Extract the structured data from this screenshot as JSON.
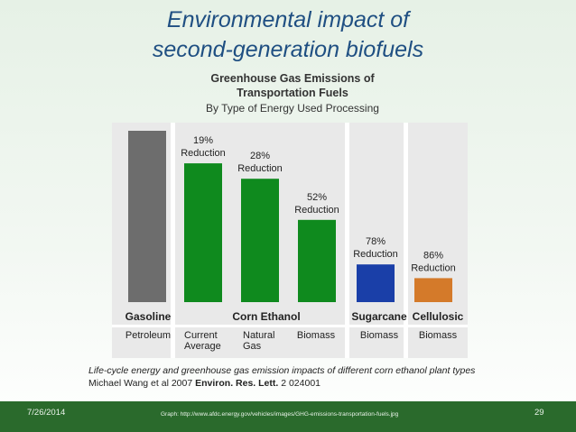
{
  "slide": {
    "title_line1": "Environmental impact of",
    "title_line2": "second-generation biofuels"
  },
  "chart_data": {
    "type": "bar",
    "title": "Greenhouse Gas Emissions of",
    "title_line2": "Transportation Fuels",
    "subtitle": "By Type of Energy Used Processing",
    "ylim": [
      0,
      100
    ],
    "grid": false,
    "bars": [
      {
        "fuel": "Gasoline",
        "energy": "Petroleum",
        "value": 100,
        "label_pct": "",
        "label_text": "",
        "color": "#6d6d6d"
      },
      {
        "fuel": "Corn Ethanol",
        "energy": "Current Average",
        "value": 81,
        "label_pct": "19%",
        "label_text": "Reduction",
        "color": "#0f8a1e"
      },
      {
        "fuel": "Corn Ethanol",
        "energy": "Natural Gas",
        "value": 72,
        "label_pct": "28%",
        "label_text": "Reduction",
        "color": "#0f8a1e"
      },
      {
        "fuel": "Corn Ethanol",
        "energy": "Biomass",
        "value": 48,
        "label_pct": "52%",
        "label_text": "Reduction",
        "color": "#0f8a1e"
      },
      {
        "fuel": "Sugarcane",
        "energy": "Biomass",
        "value": 22,
        "label_pct": "78%",
        "label_text": "Reduction",
        "color": "#1a3fa8"
      },
      {
        "fuel": "Cellulosic",
        "energy": "Biomass",
        "value": 14,
        "label_pct": "86%",
        "label_text": "Reduction",
        "color": "#d47a2a"
      }
    ],
    "groups": [
      "Gasoline",
      "Corn Ethanol",
      "Sugarcane",
      "Cellulosic"
    ],
    "energy_labels": [
      [
        "Petroleum"
      ],
      [
        "Current",
        "Average"
      ],
      [
        "Natural",
        "Gas"
      ],
      [
        "Biomass"
      ],
      [
        "Biomass"
      ],
      [
        "Biomass"
      ]
    ]
  },
  "caption": {
    "line1": "Life-cycle energy and greenhouse gas emission impacts of different corn ethanol plant types",
    "line2_prefix": "Michael Wang et al 2007 ",
    "line2_journal": "Environ. Res. Lett.",
    "line2_suffix": " 2 024001"
  },
  "footer": {
    "date": "7/26/2014",
    "source": "Graph: http://www.afdc.energy.gov/vehicles/images/GHG-emissions-transportation-fuels.jpg",
    "page": "29"
  }
}
